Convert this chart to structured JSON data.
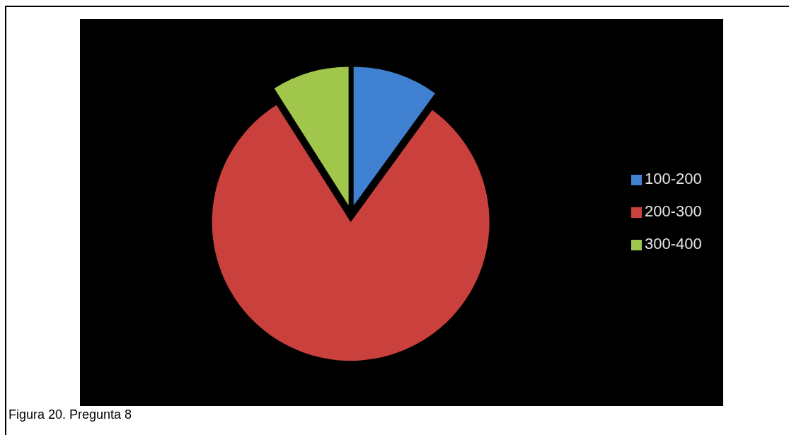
{
  "chart_data": {
    "type": "pie",
    "categories": [
      "100-200",
      "200-300",
      "300-400"
    ],
    "values": [
      10,
      81,
      9
    ],
    "colors": [
      "#4080d0",
      "#c9403c",
      "#a0c64c"
    ],
    "legend": "right",
    "annotations": [
      "Figura 20. Pregunta 8"
    ]
  }
}
